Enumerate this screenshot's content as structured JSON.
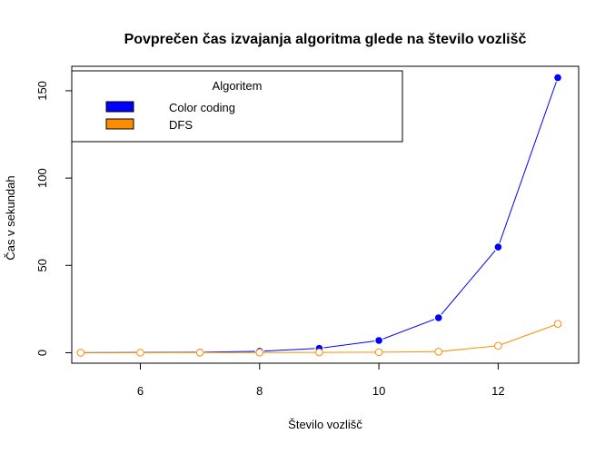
{
  "chart_data": {
    "type": "line",
    "title": "Povprečen čas izvajanja algoritma glede na število vozlišč",
    "xlabel": "Število vozlišč",
    "ylabel": "Čas v sekundah",
    "xlim": [
      4.85,
      13.35
    ],
    "ylim": [
      -6,
      164
    ],
    "xticks": [
      6,
      8,
      10,
      12
    ],
    "yticks": [
      0,
      50,
      100,
      150
    ],
    "x": [
      5,
      6,
      7,
      8,
      9,
      10,
      11,
      12,
      13
    ],
    "grid": false,
    "legend": {
      "title": "Algoritem",
      "placement": "top-left"
    },
    "series": [
      {
        "name": "Color coding",
        "color": "#0000ff",
        "marker": "filled-circle",
        "values": [
          0.05,
          0.15,
          0.3,
          0.8,
          2.5,
          7,
          20,
          60.5,
          157.5
        ]
      },
      {
        "name": "DFS",
        "color": "#ff8c00",
        "marker": "open-circle",
        "values": [
          0.02,
          0.05,
          0.08,
          0.12,
          0.2,
          0.3,
          0.6,
          4,
          16.5
        ]
      }
    ]
  }
}
